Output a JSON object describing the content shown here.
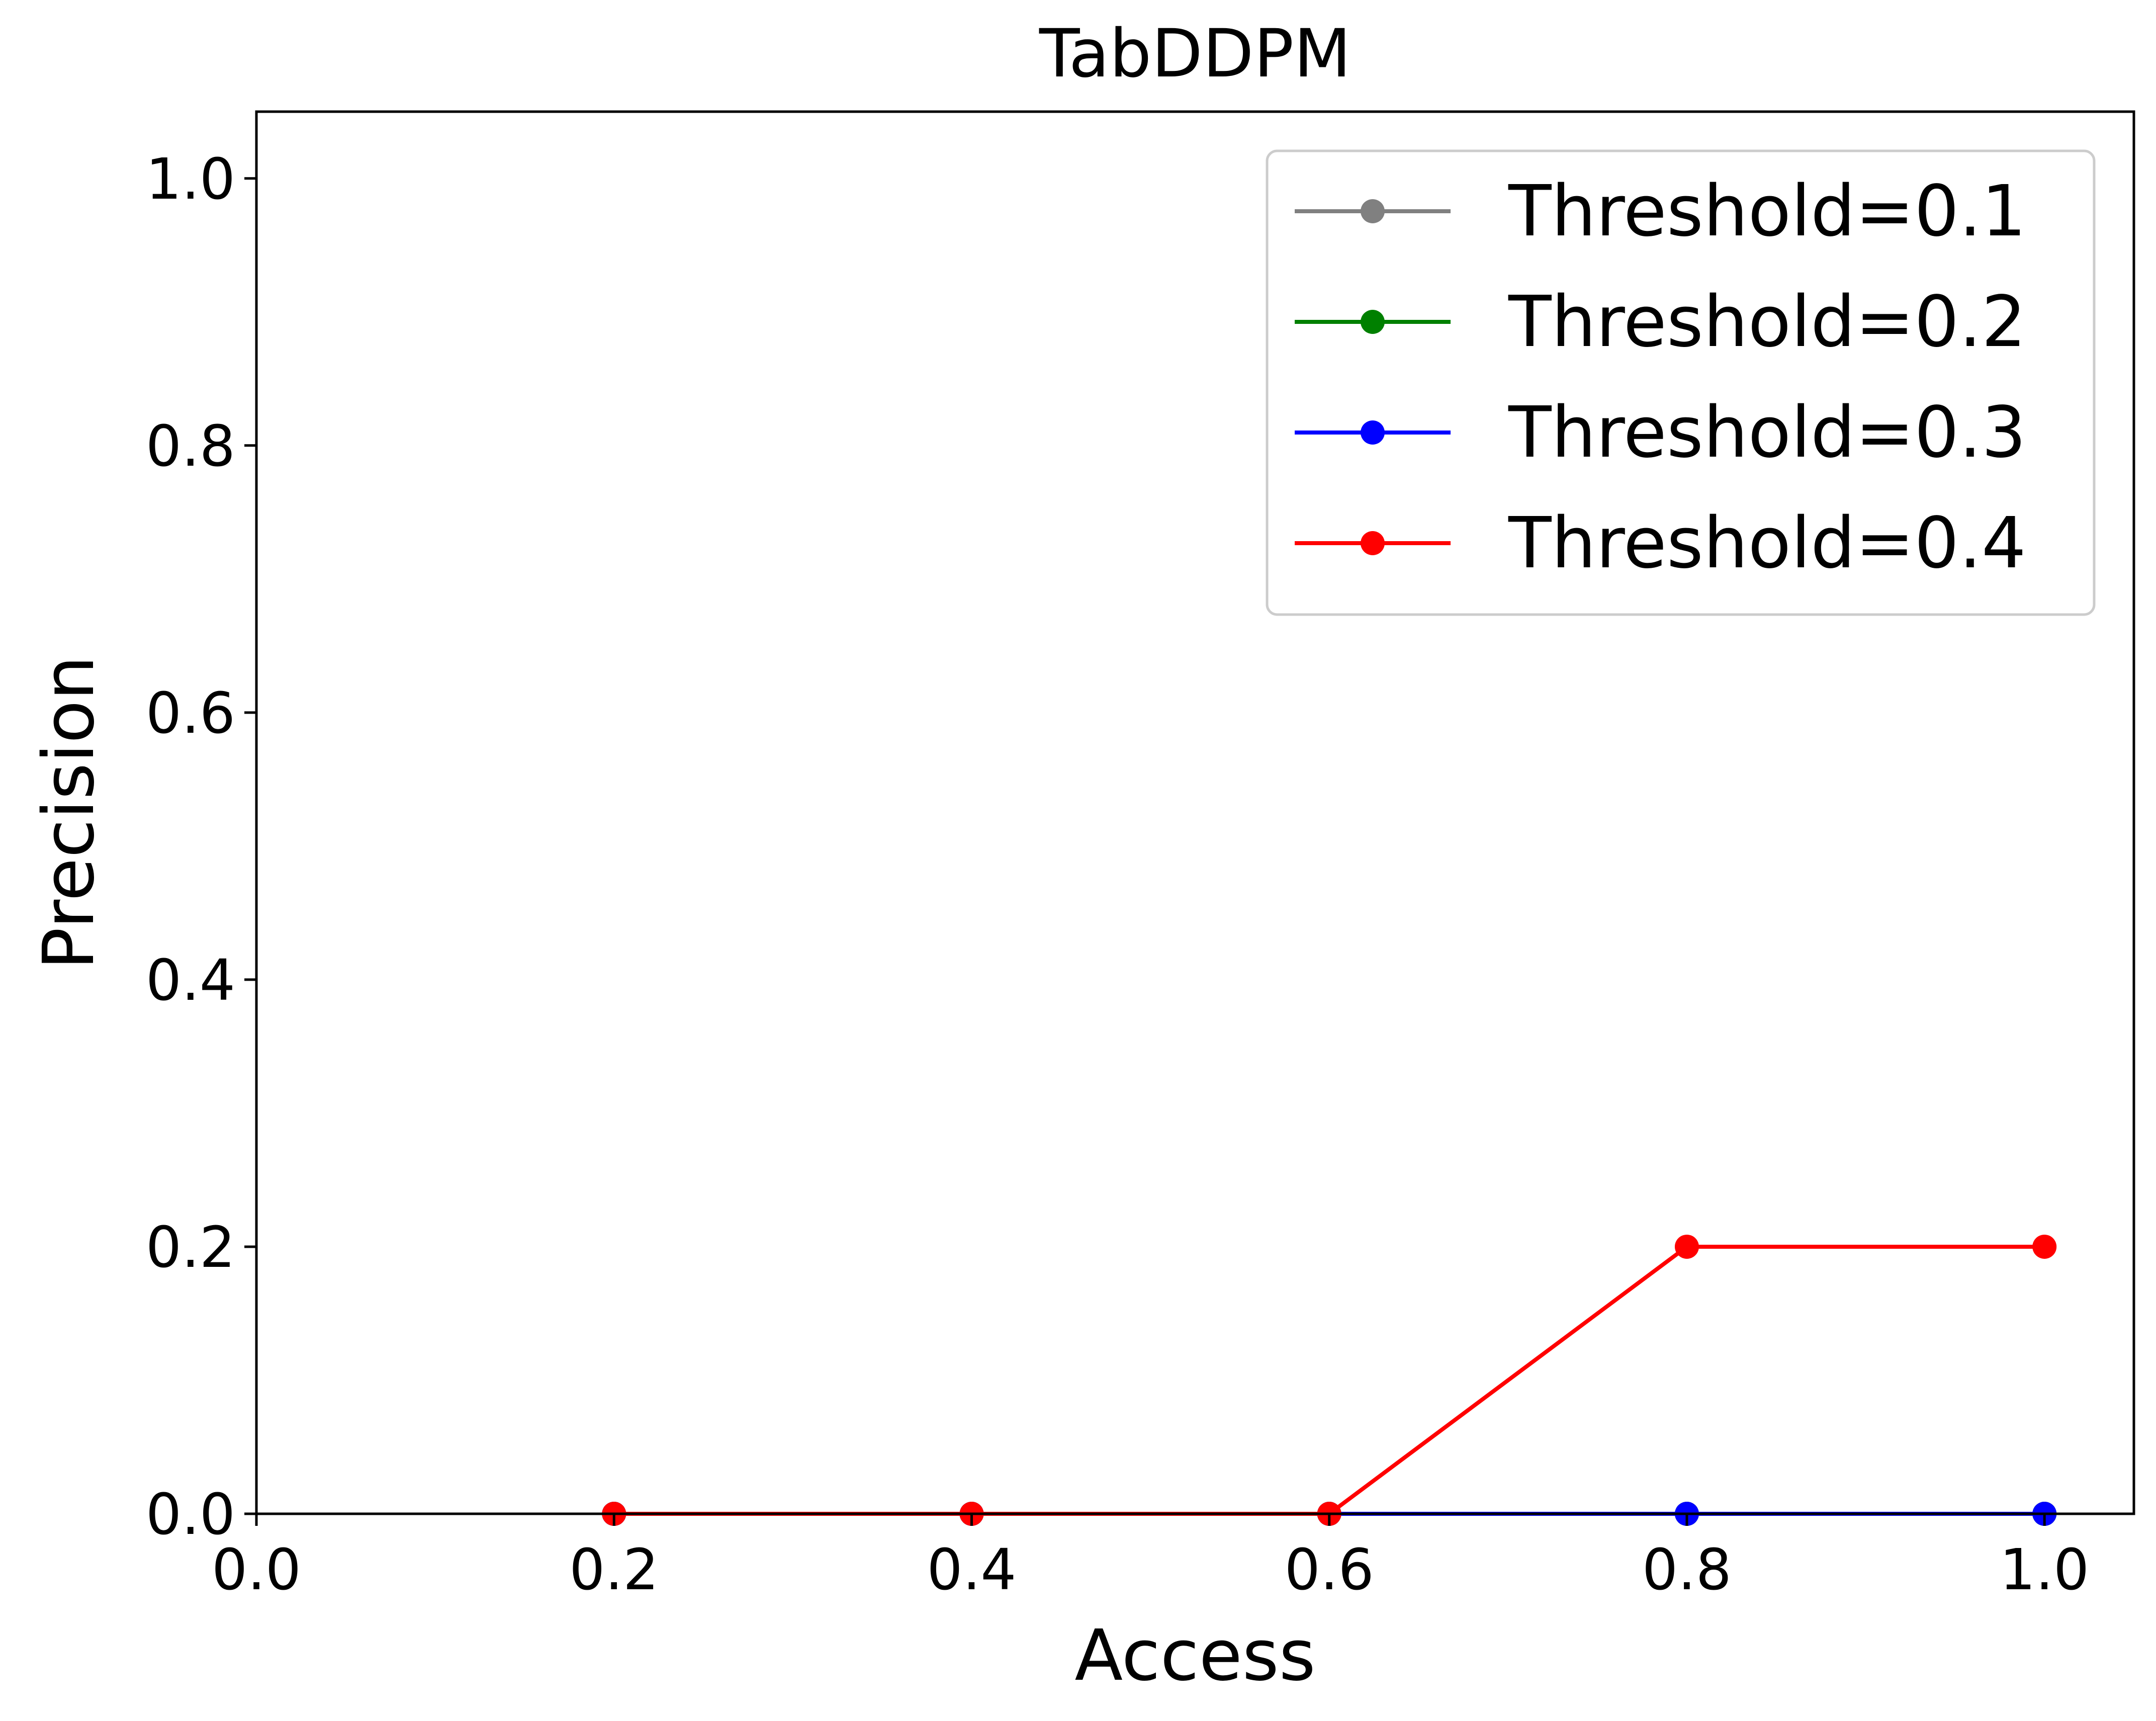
{
  "chart_data": {
    "type": "line",
    "title": "TabDDPM",
    "xlabel": "Access",
    "ylabel": "Precision",
    "xlim": [
      0.0,
      1.05
    ],
    "ylim": [
      0.0,
      1.05
    ],
    "xticks": [
      "0.0",
      "0.2",
      "0.4",
      "0.6",
      "0.8",
      "1.0"
    ],
    "yticks": [
      "0.0",
      "0.2",
      "0.4",
      "0.6",
      "0.8",
      "1.0"
    ],
    "grid": false,
    "legend_position": "top-right",
    "x": [
      0.2,
      0.4,
      0.6,
      0.8,
      1.0
    ],
    "series": [
      {
        "name": "Threshold=0.1",
        "color": "#808080",
        "values": [
          0.0,
          0.0,
          0.0,
          0.0,
          0.0
        ]
      },
      {
        "name": "Threshold=0.2",
        "color": "#008000",
        "values": [
          0.0,
          0.0,
          0.0,
          0.0,
          0.0
        ]
      },
      {
        "name": "Threshold=0.3",
        "color": "#0000ff",
        "values": [
          0.0,
          0.0,
          0.0,
          0.0,
          0.0
        ]
      },
      {
        "name": "Threshold=0.4",
        "color": "#ff0000",
        "values": [
          0.0,
          0.0,
          0.0,
          0.2,
          0.2
        ]
      }
    ]
  }
}
